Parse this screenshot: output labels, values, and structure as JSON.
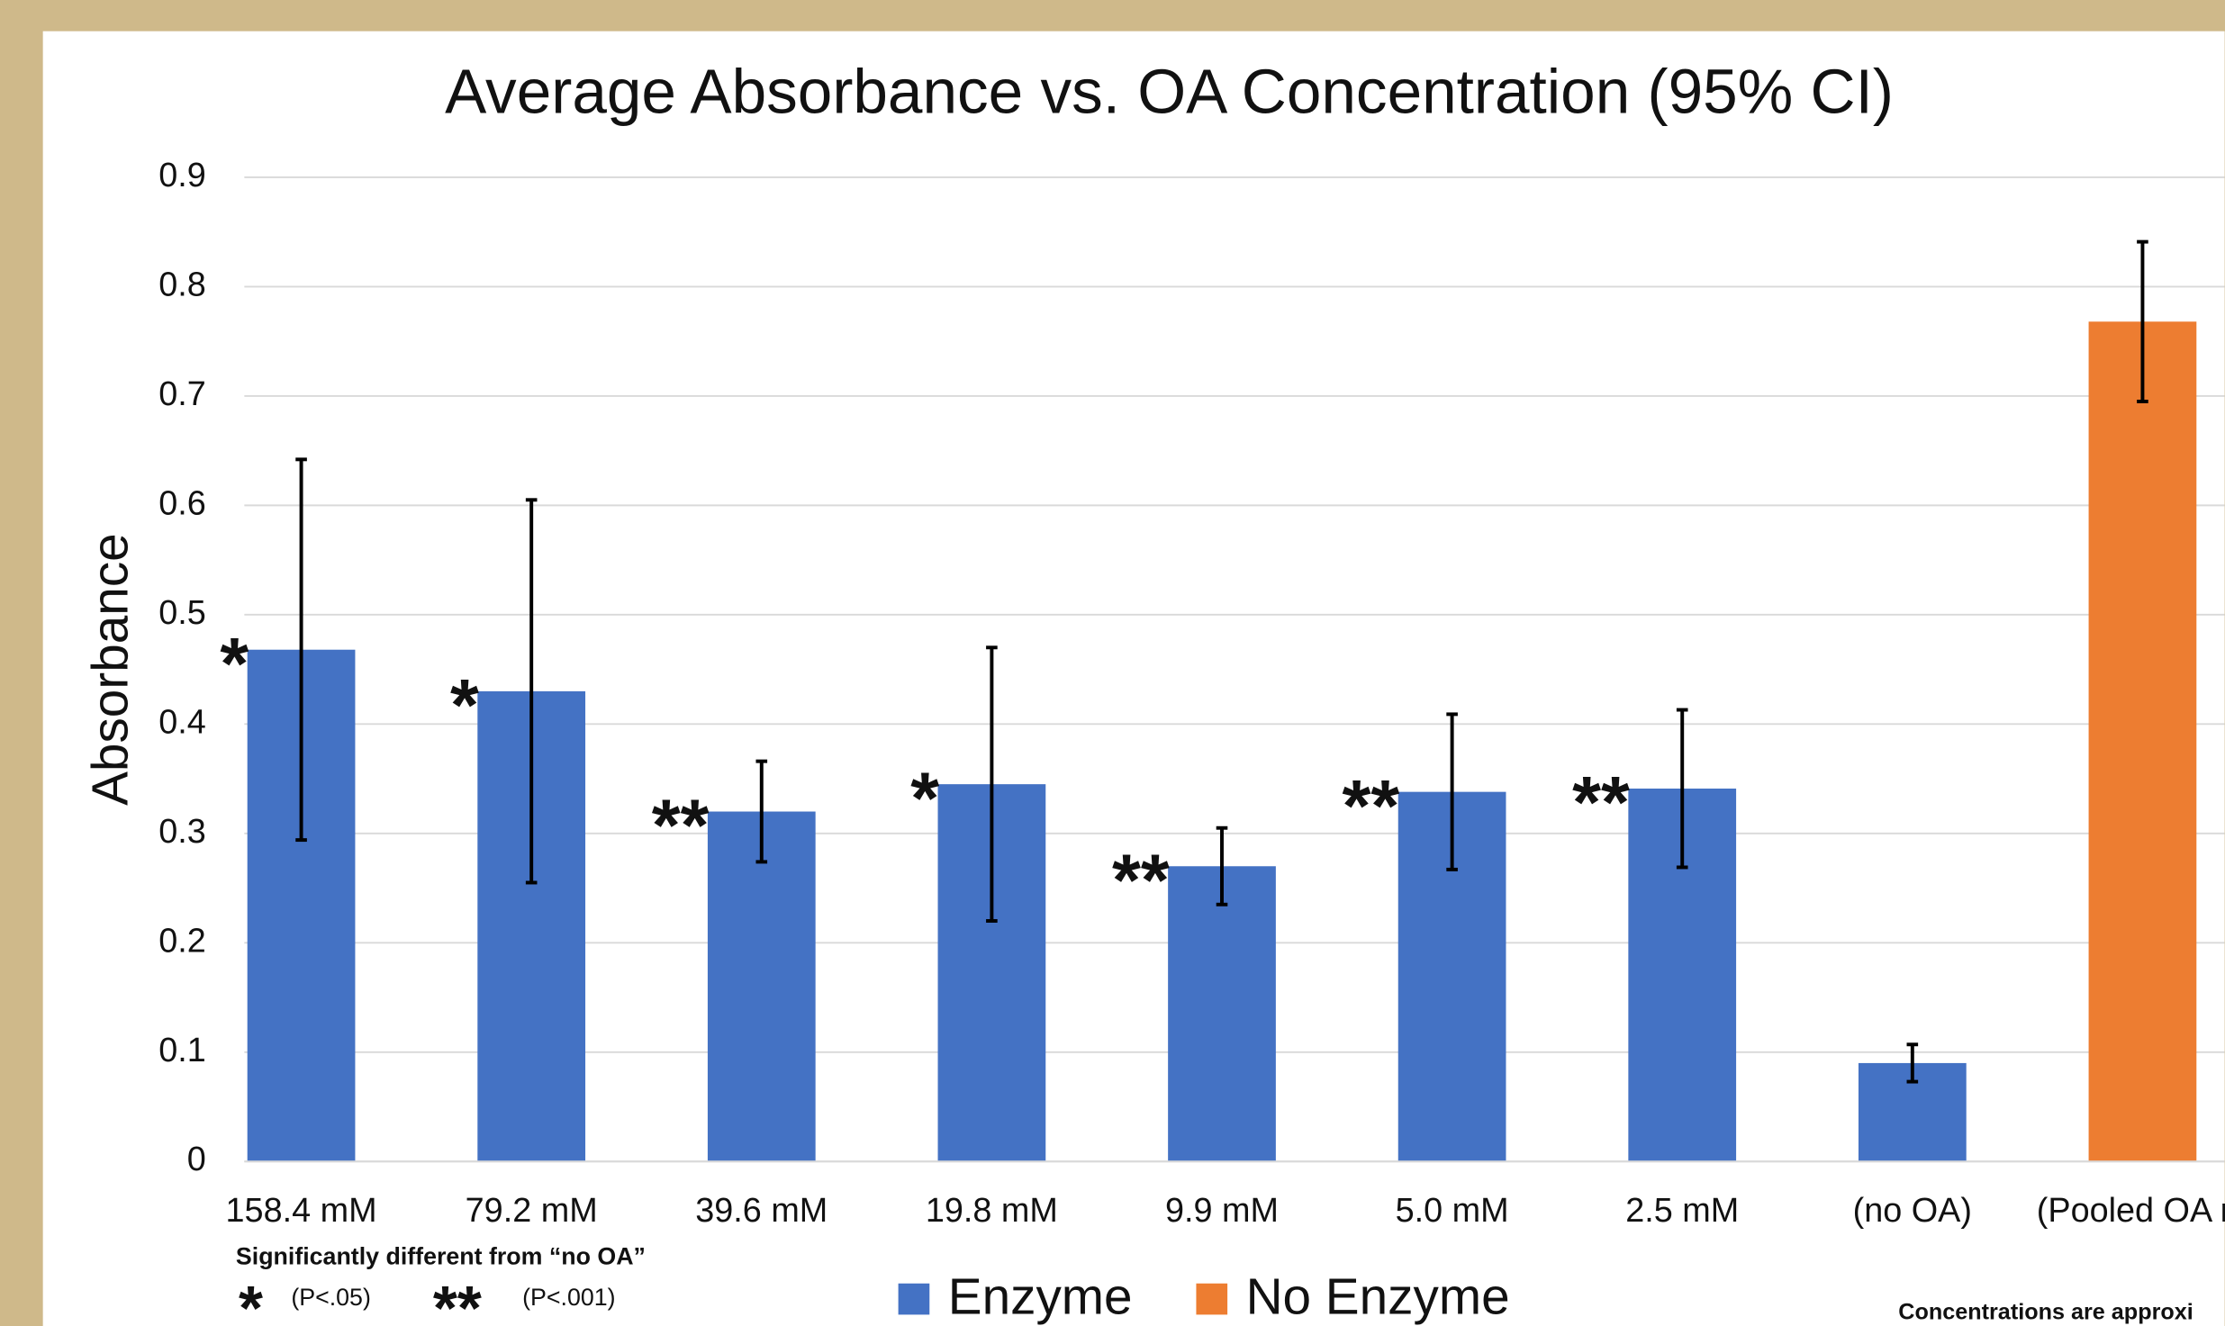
{
  "chart_data": {
    "type": "bar",
    "title": "Average Absorbance vs. OA Concentration (95% CI)",
    "y_label": "Absorbance",
    "categories": [
      "158.4 mM",
      "79.2 mM",
      "39.6 mM",
      "19.8 mM",
      "9.9 mM",
      "5.0 mM",
      "2.5 mM",
      "(no OA)",
      "(Pooled OA m"
    ],
    "series": [
      {
        "name": "Enzyme",
        "color": "#4472c4",
        "values": [
          0.468,
          0.43,
          0.32,
          0.345,
          0.27,
          0.338,
          0.341,
          0.09,
          null
        ],
        "errors": [
          0.174,
          0.175,
          0.046,
          0.125,
          0.035,
          0.071,
          0.072,
          0.017,
          null
        ]
      },
      {
        "name": "No Enzyme",
        "color": "#ed7d31",
        "values": [
          null,
          null,
          null,
          null,
          null,
          null,
          null,
          null,
          0.768
        ],
        "errors": [
          null,
          null,
          null,
          null,
          null,
          null,
          null,
          null,
          0.073
        ]
      }
    ],
    "significance": [
      "*",
      "*",
      "**",
      "*",
      "**",
      "**",
      "**",
      null,
      null
    ],
    "significance_color": "#7b2d47",
    "significance_title": "Significantly different from “no OA”",
    "significance_key": [
      {
        "symbol": "*",
        "label": "(P<.05)"
      },
      {
        "symbol": "**",
        "label": "(P<.001)"
      }
    ],
    "footnote": "Concentrations are approxi",
    "ylim": [
      0,
      0.9
    ],
    "yticks": [
      0,
      0.1,
      0.2,
      0.3,
      0.4,
      0.5,
      0.6,
      0.7,
      0.8,
      0.9
    ],
    "grid": true
  }
}
